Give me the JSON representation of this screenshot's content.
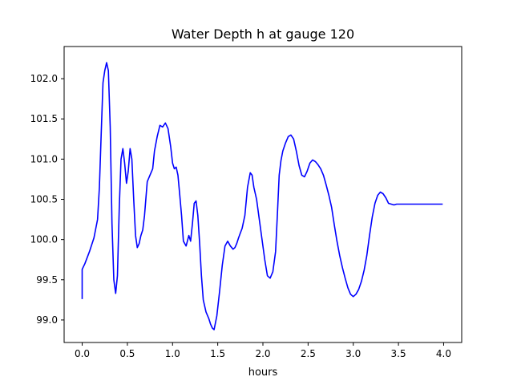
{
  "chart_data": {
    "type": "line",
    "title": "Water Depth h at gauge 120",
    "xlabel": "hours",
    "ylabel": "",
    "xlim": [
      -0.2,
      4.2
    ],
    "ylim": [
      98.72,
      102.4
    ],
    "xticks": [
      0.0,
      0.5,
      1.0,
      1.5,
      2.0,
      2.5,
      3.0,
      3.5,
      4.0
    ],
    "xtick_labels": [
      "0.0",
      "0.5",
      "1.0",
      "1.5",
      "2.0",
      "2.5",
      "3.0",
      "3.5",
      "4.0"
    ],
    "yticks": [
      99.0,
      99.5,
      100.0,
      100.5,
      101.0,
      101.5,
      102.0
    ],
    "ytick_labels": [
      "99.0",
      "99.5",
      "100.0",
      "100.5",
      "101.0",
      "101.5",
      "102.0"
    ],
    "grid": false,
    "legend": "none",
    "series": [
      {
        "color": "#0000ff",
        "x": [
          0.0,
          0.0,
          0.03,
          0.08,
          0.13,
          0.17,
          0.19,
          0.21,
          0.23,
          0.25,
          0.27,
          0.29,
          0.31,
          0.33,
          0.35,
          0.37,
          0.39,
          0.41,
          0.43,
          0.45,
          0.47,
          0.49,
          0.51,
          0.53,
          0.55,
          0.57,
          0.59,
          0.61,
          0.63,
          0.65,
          0.67,
          0.69,
          0.72,
          0.75,
          0.78,
          0.8,
          0.83,
          0.86,
          0.89,
          0.92,
          0.95,
          0.98,
          1.0,
          1.02,
          1.04,
          1.06,
          1.08,
          1.1,
          1.12,
          1.15,
          1.18,
          1.2,
          1.22,
          1.24,
          1.26,
          1.28,
          1.3,
          1.32,
          1.34,
          1.37,
          1.4,
          1.42,
          1.44,
          1.46,
          1.49,
          1.52,
          1.55,
          1.58,
          1.61,
          1.64,
          1.67,
          1.69,
          1.71,
          1.73,
          1.75,
          1.77,
          1.8,
          1.83,
          1.86,
          1.88,
          1.9,
          1.93,
          1.96,
          1.99,
          2.02,
          2.05,
          2.08,
          2.11,
          2.14,
          2.16,
          2.18,
          2.2,
          2.22,
          2.25,
          2.28,
          2.31,
          2.34,
          2.37,
          2.4,
          2.43,
          2.46,
          2.49,
          2.52,
          2.55,
          2.58,
          2.61,
          2.64,
          2.67,
          2.7,
          2.73,
          2.76,
          2.79,
          2.82,
          2.85,
          2.88,
          2.91,
          2.94,
          2.97,
          3.0,
          3.03,
          3.06,
          3.09,
          3.12,
          3.15,
          3.18,
          3.21,
          3.24,
          3.27,
          3.3,
          3.33,
          3.36,
          3.39,
          3.42,
          3.45,
          3.48,
          3.51,
          3.54,
          3.57,
          3.6,
          3.63,
          3.66,
          3.69,
          3.72,
          3.75,
          3.78,
          3.81,
          3.84,
          3.87,
          3.9,
          3.93,
          3.96,
          3.99
        ],
        "y": [
          99.26,
          99.63,
          99.7,
          99.85,
          100.02,
          100.25,
          100.65,
          101.3,
          101.95,
          102.1,
          102.2,
          102.1,
          101.4,
          100.2,
          99.5,
          99.33,
          99.55,
          100.4,
          101.0,
          101.13,
          100.95,
          100.7,
          100.85,
          101.13,
          101.0,
          100.5,
          100.05,
          99.9,
          99.95,
          100.05,
          100.12,
          100.3,
          100.72,
          100.8,
          100.88,
          101.1,
          101.28,
          101.42,
          101.4,
          101.45,
          101.38,
          101.15,
          100.95,
          100.88,
          100.9,
          100.8,
          100.55,
          100.3,
          99.98,
          99.92,
          100.05,
          99.98,
          100.2,
          100.45,
          100.48,
          100.3,
          99.95,
          99.55,
          99.25,
          99.1,
          99.02,
          98.95,
          98.9,
          98.88,
          99.05,
          99.35,
          99.68,
          99.92,
          99.98,
          99.92,
          99.88,
          99.9,
          99.95,
          100.02,
          100.08,
          100.14,
          100.3,
          100.65,
          100.83,
          100.8,
          100.65,
          100.5,
          100.25,
          100.0,
          99.75,
          99.55,
          99.52,
          99.6,
          99.85,
          100.3,
          100.8,
          100.98,
          101.1,
          101.2,
          101.28,
          101.3,
          101.25,
          101.1,
          100.92,
          100.8,
          100.78,
          100.85,
          100.95,
          100.99,
          100.97,
          100.93,
          100.88,
          100.8,
          100.68,
          100.55,
          100.4,
          100.18,
          99.98,
          99.8,
          99.65,
          99.52,
          99.4,
          99.32,
          99.29,
          99.32,
          99.38,
          99.48,
          99.62,
          99.8,
          100.05,
          100.28,
          100.45,
          100.55,
          100.59,
          100.57,
          100.52,
          100.45,
          100.44,
          100.43,
          100.44,
          100.44,
          100.44,
          100.44,
          100.44,
          100.44,
          100.44,
          100.44,
          100.44,
          100.44,
          100.44,
          100.44,
          100.44,
          100.44,
          100.44,
          100.44,
          100.44,
          100.44
        ]
      }
    ]
  }
}
